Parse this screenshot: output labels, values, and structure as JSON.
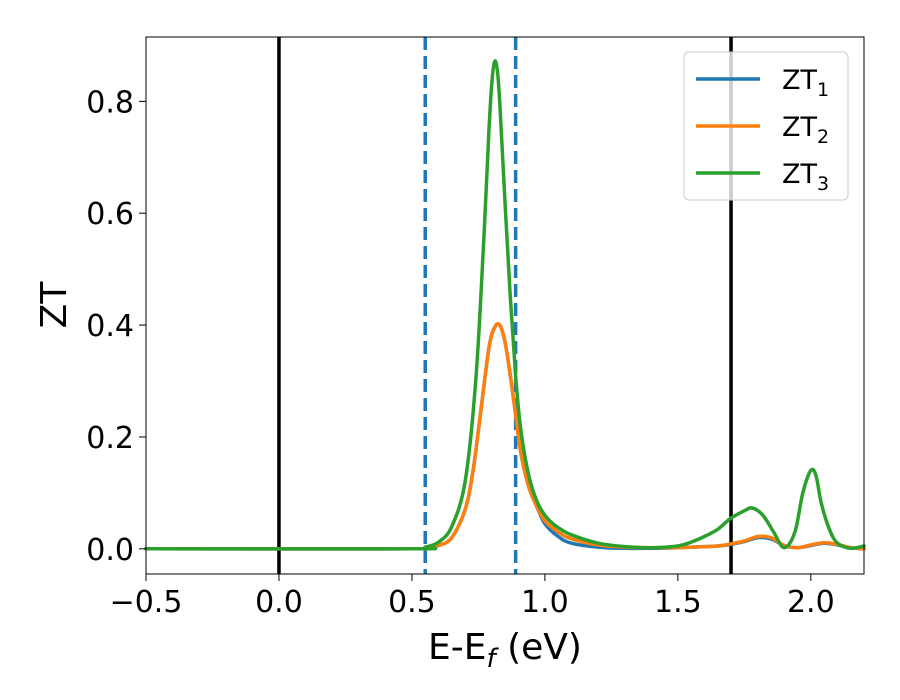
{
  "chart_data": {
    "type": "line",
    "xlabel": {
      "main": "E-E",
      "sub": "f",
      "unit": " (eV)"
    },
    "ylabel": "ZT",
    "xlim": [
      -0.5,
      2.2
    ],
    "ylim": [
      -0.045,
      0.915
    ],
    "x_ticks": [
      -0.5,
      0.0,
      0.5,
      1.0,
      1.5,
      2.0
    ],
    "x_tick_labels": [
      "−0.5",
      "0.0",
      "0.5",
      "1.0",
      "1.5",
      "2.0"
    ],
    "y_ticks": [
      0.0,
      0.2,
      0.4,
      0.6,
      0.8
    ],
    "y_tick_labels": [
      "0.0",
      "0.2",
      "0.4",
      "0.6",
      "0.8"
    ],
    "grid": false,
    "legend_position": "top-right",
    "vlines": [
      {
        "x": 0.0,
        "style": "solid",
        "color": "#000000"
      },
      {
        "x": 1.7,
        "style": "solid",
        "color": "#000000"
      },
      {
        "x": 0.55,
        "style": "dashed",
        "color": "#1f77b4"
      },
      {
        "x": 0.89,
        "style": "dashed",
        "color": "#1f77b4"
      }
    ],
    "series": [
      {
        "name": "ZT",
        "sub": "1",
        "color": "#1f77b4",
        "x": [
          -0.5,
          0.5,
          0.55,
          0.6,
          0.65,
          0.7,
          0.73,
          0.76,
          0.79,
          0.81,
          0.83,
          0.85,
          0.87,
          0.89,
          0.91,
          0.94,
          0.97,
          1.0,
          1.05,
          1.1,
          1.2,
          1.3,
          1.4,
          1.5,
          1.55,
          1.6,
          1.65,
          1.7,
          1.75,
          1.8,
          1.85,
          1.9,
          1.95,
          2.0,
          2.05,
          2.1,
          2.15,
          2.2
        ],
        "y": [
          0.0,
          0.0,
          0.002,
          0.006,
          0.02,
          0.07,
          0.14,
          0.25,
          0.36,
          0.395,
          0.4,
          0.37,
          0.31,
          0.24,
          0.17,
          0.11,
          0.075,
          0.045,
          0.022,
          0.01,
          0.003,
          0.001,
          0.001,
          0.002,
          0.003,
          0.004,
          0.005,
          0.008,
          0.013,
          0.02,
          0.018,
          0.006,
          0.002,
          0.006,
          0.01,
          0.007,
          0.002,
          0.0
        ]
      },
      {
        "name": "ZT",
        "sub": "2",
        "color": "#ff7f0e",
        "x": [
          -0.5,
          0.5,
          0.55,
          0.6,
          0.65,
          0.7,
          0.73,
          0.76,
          0.79,
          0.81,
          0.83,
          0.85,
          0.87,
          0.89,
          0.91,
          0.94,
          0.97,
          1.0,
          1.05,
          1.1,
          1.2,
          1.3,
          1.4,
          1.5,
          1.55,
          1.6,
          1.65,
          1.7,
          1.75,
          1.8,
          1.85,
          1.9,
          1.95,
          2.0,
          2.05,
          2.1,
          2.15,
          2.2
        ],
        "y": [
          0.0,
          0.0,
          0.002,
          0.006,
          0.02,
          0.07,
          0.14,
          0.25,
          0.36,
          0.395,
          0.4,
          0.37,
          0.31,
          0.24,
          0.17,
          0.11,
          0.075,
          0.05,
          0.03,
          0.018,
          0.007,
          0.003,
          0.002,
          0.002,
          0.003,
          0.004,
          0.005,
          0.009,
          0.014,
          0.022,
          0.02,
          0.006,
          0.002,
          0.007,
          0.011,
          0.008,
          0.002,
          0.0
        ]
      },
      {
        "name": "ZT",
        "sub": "3",
        "color": "#2ca02c",
        "x": [
          -0.5,
          0.5,
          0.55,
          0.6,
          0.65,
          0.7,
          0.74,
          0.77,
          0.79,
          0.8,
          0.81,
          0.82,
          0.83,
          0.85,
          0.87,
          0.89,
          0.91,
          0.94,
          0.97,
          1.0,
          1.03,
          1.06,
          1.1,
          1.2,
          1.3,
          1.4,
          1.5,
          1.55,
          1.6,
          1.65,
          1.7,
          1.75,
          1.78,
          1.82,
          1.86,
          1.9,
          1.94,
          1.97,
          2.0,
          2.02,
          2.04,
          2.07,
          2.1,
          2.15,
          2.2
        ],
        "y": [
          0.0,
          0.0,
          0.003,
          0.012,
          0.04,
          0.12,
          0.3,
          0.55,
          0.75,
          0.83,
          0.87,
          0.86,
          0.8,
          0.62,
          0.45,
          0.31,
          0.21,
          0.13,
          0.085,
          0.06,
          0.045,
          0.035,
          0.025,
          0.01,
          0.004,
          0.002,
          0.005,
          0.012,
          0.022,
          0.035,
          0.055,
          0.068,
          0.073,
          0.06,
          0.03,
          0.002,
          0.03,
          0.1,
          0.14,
          0.13,
          0.08,
          0.035,
          0.01,
          0.001,
          0.005
        ]
      }
    ]
  }
}
